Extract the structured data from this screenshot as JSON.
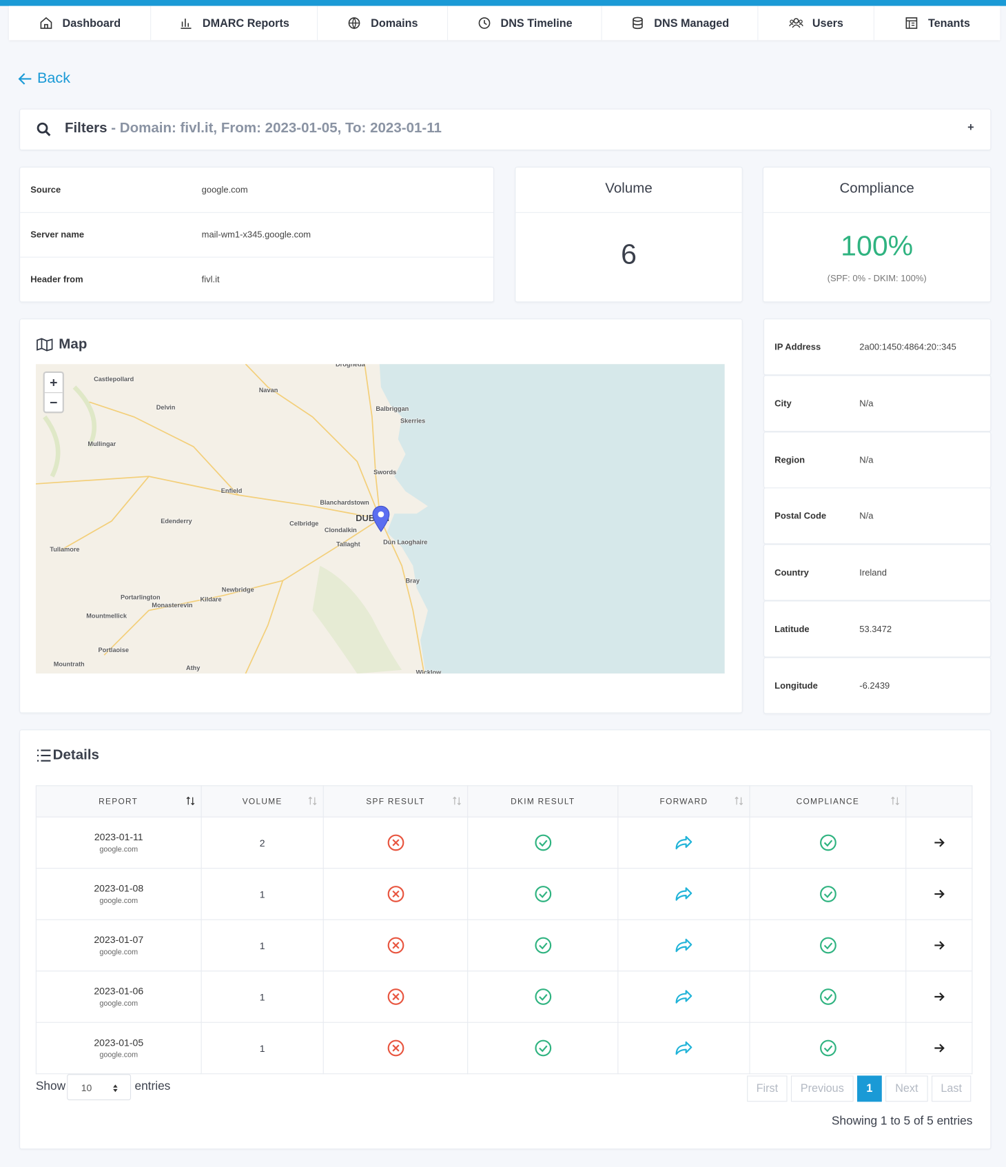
{
  "nav": [
    "Dashboard",
    "DMARC Reports",
    "Domains",
    "DNS Timeline",
    "DNS Managed",
    "Users",
    "Tenants"
  ],
  "back": "Back",
  "filters": {
    "title": "Filters",
    "summary": "- Domain: fivl.it, From: 2023-01-05, To: 2023-01-11",
    "toggle": "+"
  },
  "source_info": [
    {
      "label": "Source",
      "value": "google.com"
    },
    {
      "label": "Server name",
      "value": "mail-wm1-x345.google.com"
    },
    {
      "label": "Header from",
      "value": "fivl.it"
    }
  ],
  "volume": {
    "title": "Volume",
    "value": "6"
  },
  "compliance": {
    "title": "Compliance",
    "value": "100%",
    "detail": "(SPF: 0% - DKIM: 100%)"
  },
  "map": {
    "title": "Map",
    "zoom_in": "+",
    "zoom_out": "−",
    "labels": [
      "Castlepollard",
      "Drogheda",
      "Navan",
      "Delvin",
      "Balbriggan",
      "Skerries",
      "Mullingar",
      "Swords",
      "Enfield",
      "Blanchardstown",
      "DUBLIN",
      "Edenderry",
      "Celbridge",
      "Clondalkin",
      "Tallaght",
      "Dún Laoghaire",
      "Tullamore",
      "Bray",
      "Newbridge",
      "Portarlington",
      "Kildare",
      "Monasterevin",
      "Mountmellick",
      "Portlaoise",
      "Mountrath",
      "Athy",
      "Wicklow"
    ]
  },
  "geo": [
    {
      "label": "IP Address",
      "value": "2a00:1450:4864:20::345"
    },
    {
      "label": "City",
      "value": "N/a"
    },
    {
      "label": "Region",
      "value": "N/a"
    },
    {
      "label": "Postal Code",
      "value": "N/a"
    },
    {
      "label": "Country",
      "value": "Ireland"
    },
    {
      "label": "Latitude",
      "value": "53.3472"
    },
    {
      "label": "Longitude",
      "value": "-6.2439"
    }
  ],
  "details": {
    "title": "Details",
    "columns": [
      "REPORT",
      "VOLUME",
      "SPF RESULT",
      "DKIM RESULT",
      "FORWARD",
      "COMPLIANCE"
    ],
    "rows": [
      {
        "report": "2023-01-11",
        "source": "google.com",
        "volume": "2"
      },
      {
        "report": "2023-01-08",
        "source": "google.com",
        "volume": "1"
      },
      {
        "report": "2023-01-07",
        "source": "google.com",
        "volume": "1"
      },
      {
        "report": "2023-01-06",
        "source": "google.com",
        "volume": "1"
      },
      {
        "report": "2023-01-05",
        "source": "google.com",
        "volume": "1"
      }
    ],
    "length": {
      "show": "Show",
      "value": "10",
      "entries": "entries"
    },
    "pagination": [
      "First",
      "Previous",
      "1",
      "Next",
      "Last"
    ],
    "info": "Showing 1 to 5 of 5 entries"
  }
}
